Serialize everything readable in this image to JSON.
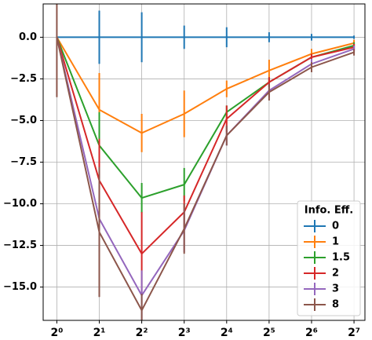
{
  "chart_data": {
    "type": "errorbar-line",
    "x": [
      1,
      2,
      4,
      8,
      16,
      32,
      64,
      128
    ],
    "xscale": "log2",
    "xlim": [
      0.8,
      153
    ],
    "xticks": [
      {
        "value": 1,
        "label": "2⁰"
      },
      {
        "value": 2,
        "label": "2¹"
      },
      {
        "value": 4,
        "label": "2²"
      },
      {
        "value": 8,
        "label": "2³"
      },
      {
        "value": 16,
        "label": "2⁴"
      },
      {
        "value": 32,
        "label": "2⁵"
      },
      {
        "value": 64,
        "label": "2⁶"
      },
      {
        "value": 128,
        "label": "2⁷"
      }
    ],
    "ylim": [
      -17,
      2
    ],
    "yticks": [
      {
        "value": 0,
        "label": "0.0"
      },
      {
        "value": -2.5,
        "label": "−2.5"
      },
      {
        "value": -5,
        "label": "−5.0"
      },
      {
        "value": -7.5,
        "label": "−7.5"
      },
      {
        "value": -10,
        "label": "−10.0"
      },
      {
        "value": -12.5,
        "label": "−12.5"
      },
      {
        "value": -15,
        "label": "−15.0"
      }
    ],
    "grid": true,
    "legend_title": "Info. Eff.",
    "legend_position": "lower right",
    "series": [
      {
        "name": "0",
        "color": "#1f77b4",
        "values": [
          0,
          0,
          0,
          0,
          0,
          0,
          0,
          0
        ],
        "errors": [
          0,
          1.6,
          1.5,
          0.7,
          0.6,
          0.3,
          0.2,
          0.1
        ]
      },
      {
        "name": "1",
        "color": "#ff7f0e",
        "values": [
          0,
          -4.35,
          -5.75,
          -4.6,
          -3.1,
          -2.0,
          -1.0,
          -0.35
        ],
        "errors": [
          0,
          2.2,
          1.15,
          1.4,
          0.5,
          0.65,
          0.3,
          0.2
        ]
      },
      {
        "name": "1.5",
        "color": "#2ca02c",
        "values": [
          0,
          -6.5,
          -9.65,
          -8.85,
          -4.5,
          -2.7,
          -1.2,
          -0.5
        ],
        "errors": [
          0,
          2.0,
          0.9,
          1.0,
          0.4,
          0.3,
          0.2,
          0.2
        ]
      },
      {
        "name": "2",
        "color": "#d62728",
        "values": [
          0,
          -8.6,
          -13.0,
          -10.5,
          -4.9,
          -2.7,
          -1.2,
          -0.6
        ],
        "errors": [
          0,
          2.5,
          2.5,
          1.0,
          0.8,
          0.3,
          0.2,
          0.2
        ]
      },
      {
        "name": "3",
        "color": "#9467bd",
        "values": [
          0,
          -10.9,
          -15.5,
          -11.6,
          -5.9,
          -3.2,
          -1.6,
          -0.7
        ],
        "errors": [
          0,
          2.0,
          1.5,
          1.3,
          0.6,
          0.4,
          0.3,
          0.2
        ]
      },
      {
        "name": "8",
        "color": "#8c564b",
        "values": [
          0,
          -11.7,
          -16.4,
          -11.5,
          -5.9,
          -3.3,
          -1.8,
          -0.9
        ],
        "errors": [
          3.6,
          3.9,
          1.0,
          1.5,
          0.6,
          0.5,
          0.3,
          0.2
        ]
      }
    ]
  }
}
